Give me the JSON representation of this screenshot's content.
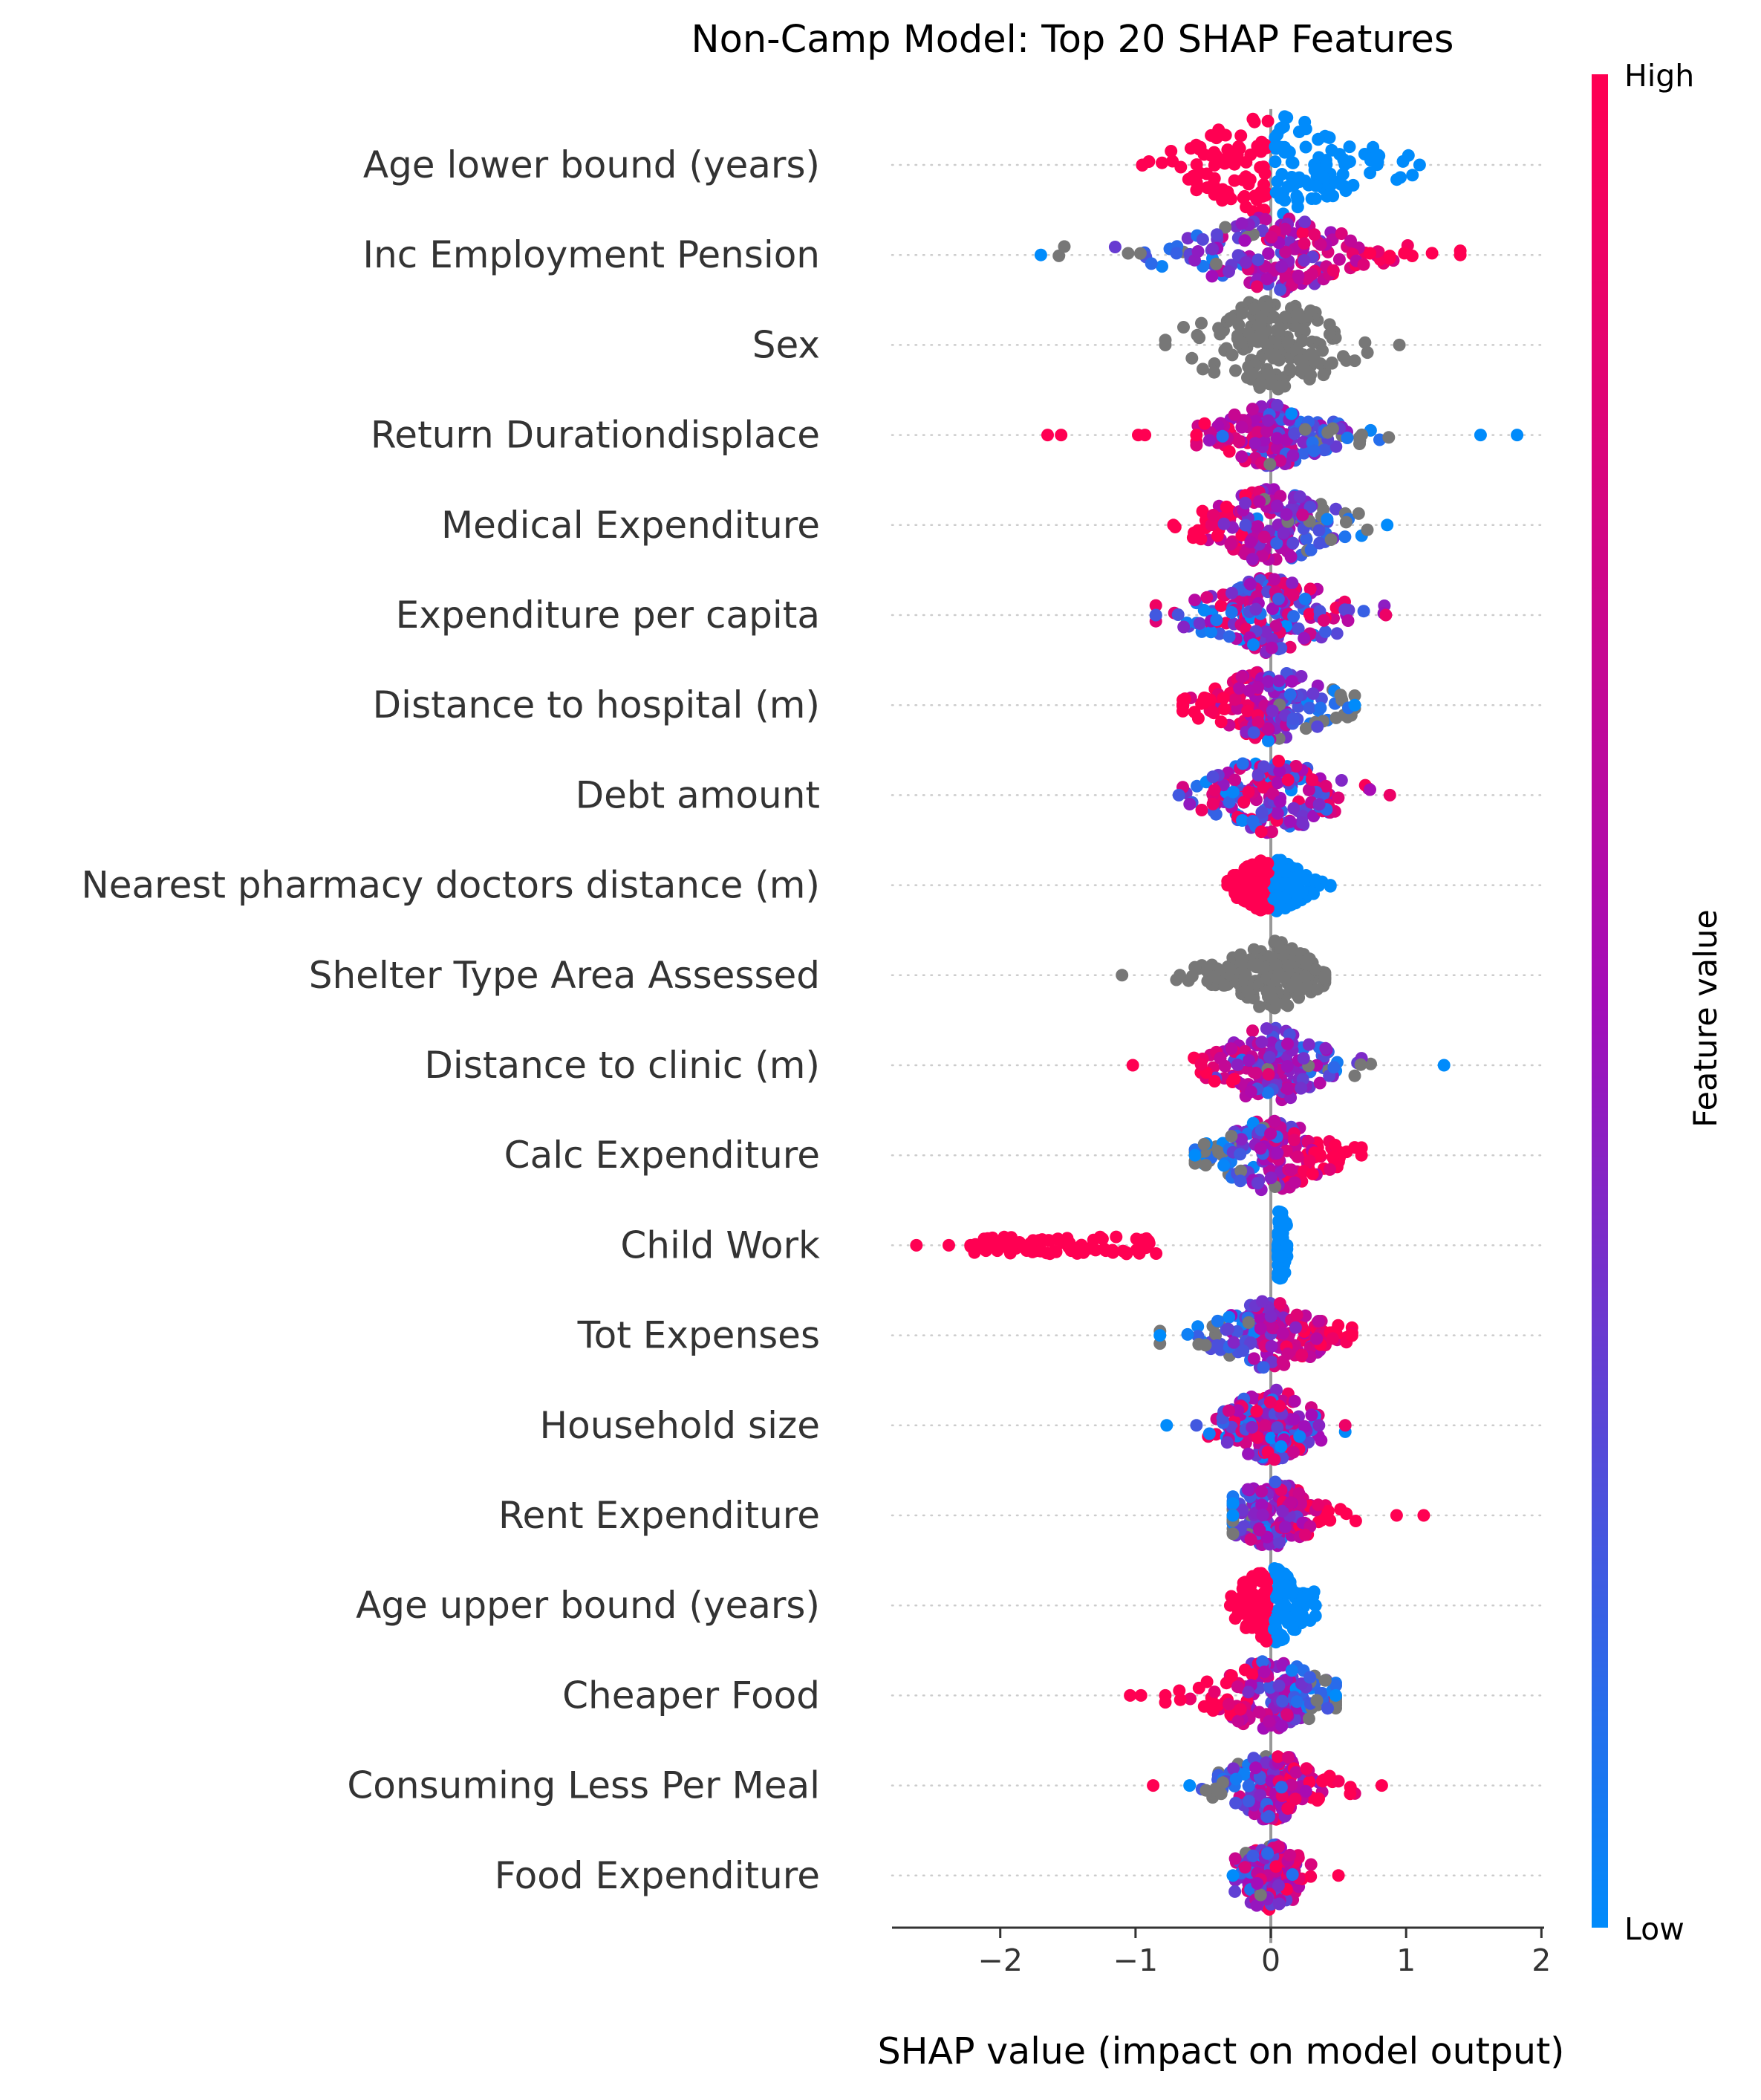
{
  "chart_data": {
    "type": "scatter",
    "subtype": "shap-beeswarm",
    "title": "Non-Camp Model: Top 20 SHAP Features",
    "xlabel": "SHAP value (impact on model output)",
    "xlim": [
      -2.8,
      2.02
    ],
    "x_ticks": [
      -2,
      -1,
      0,
      1,
      2
    ],
    "x_tick_labels": [
      "−2",
      "−1",
      "0",
      "1",
      "2"
    ],
    "zero_line": true,
    "colorbar": {
      "label": "Feature value",
      "high_label": "High",
      "low_label": "Low",
      "position": "right",
      "low_color": "#008bfb",
      "mid_color": "#a40cb8",
      "high_color": "#ff0052"
    },
    "colors": {
      "no_value": "#777777",
      "zero_line": "#999999",
      "text": "#333333",
      "row_guide": "#cccccc"
    },
    "features": [
      {
        "name": "Age lower bound (years)",
        "range": [
          -0.95,
          1.1
        ],
        "pattern": "split_high_left",
        "spread": 0.5,
        "width": 1.3,
        "categorical": true,
        "outliers": []
      },
      {
        "name": "Inc Employment Pension",
        "range": [
          -1.7,
          1.4
        ],
        "pattern": "low_left_high_right",
        "spread": 0.5,
        "width": 1.0,
        "categorical": false,
        "outliers": []
      },
      {
        "name": "Sex",
        "range": [
          -0.78,
          0.95
        ],
        "pattern": "gray",
        "spread": 0.45,
        "width": 1.2,
        "categorical": true,
        "outliers": []
      },
      {
        "name": "Return Durationdisplace",
        "range": [
          -0.55,
          1.55
        ],
        "pattern": "high_left_low_right",
        "spread": 0.35,
        "width": 0.8,
        "categorical": false,
        "outliers": [
          [
            -1.65,
            "high"
          ],
          [
            -1.55,
            "high"
          ],
          [
            -0.98,
            "high"
          ],
          [
            -0.93,
            "high"
          ],
          [
            1.82,
            "low"
          ]
        ]
      },
      {
        "name": "Medical Expenditure",
        "range": [
          -0.72,
          0.86
        ],
        "pattern": "high_left_low_right",
        "spread": 0.35,
        "width": 1.0,
        "categorical": false,
        "outliers": []
      },
      {
        "name": "Expenditure per capita",
        "range": [
          -0.85,
          0.85
        ],
        "pattern": "mixed",
        "spread": 0.4,
        "width": 1.0,
        "categorical": false,
        "outliers": []
      },
      {
        "name": "Distance to hospital (m)",
        "range": [
          -0.65,
          0.62
        ],
        "pattern": "high_left_low_right",
        "spread": 0.35,
        "width": 0.95,
        "categorical": false,
        "outliers": []
      },
      {
        "name": "Debt amount",
        "range": [
          -0.68,
          0.88
        ],
        "pattern": "mixed",
        "spread": 0.35,
        "width": 1.0,
        "categorical": false,
        "outliers": []
      },
      {
        "name": "Nearest pharmacy doctors distance (m)",
        "range": [
          -0.32,
          0.44
        ],
        "pattern": "split_high_left",
        "spread": 0.2,
        "width": 0.7,
        "categorical": false,
        "outliers": []
      },
      {
        "name": "Shelter Type Area Assessed",
        "range": [
          -1.1,
          0.4
        ],
        "pattern": "gray",
        "spread": 0.22,
        "width": 0.95,
        "categorical": false,
        "outliers": []
      },
      {
        "name": "Distance to clinic (m)",
        "range": [
          -1.02,
          1.28
        ],
        "pattern": "high_left_low_right",
        "spread": 0.3,
        "width": 1.0,
        "categorical": false,
        "outliers": []
      },
      {
        "name": "Calc Expenditure",
        "range": [
          -0.56,
          0.67
        ],
        "pattern": "low_left_high_right",
        "spread": 0.3,
        "width": 0.95,
        "categorical": false,
        "outliers": []
      },
      {
        "name": "Child Work",
        "range": [
          -2.22,
          0.12
        ],
        "pattern": "child_work",
        "spread": 0.3,
        "width": 0.9,
        "categorical": true,
        "outliers": [
          [
            -2.62,
            "high"
          ],
          [
            -2.38,
            "high"
          ]
        ]
      },
      {
        "name": "Tot Expenses",
        "range": [
          -0.82,
          0.6
        ],
        "pattern": "low_left_high_right",
        "spread": 0.3,
        "width": 0.9,
        "categorical": false,
        "outliers": []
      },
      {
        "name": "Household size",
        "range": [
          -0.55,
          0.55
        ],
        "pattern": "mixed",
        "spread": 0.25,
        "width": 0.95,
        "categorical": false,
        "outliers": [
          [
            -0.77,
            "low"
          ]
        ]
      },
      {
        "name": "Rent Expenditure",
        "range": [
          -0.28,
          0.93
        ],
        "pattern": "low_left_high_right",
        "spread": 0.25,
        "width": 0.9,
        "categorical": false,
        "outliers": [
          [
            1.13,
            "high"
          ]
        ]
      },
      {
        "name": "Age upper bound (years)",
        "range": [
          -0.3,
          0.33
        ],
        "pattern": "split_high_left",
        "spread": 0.18,
        "width": 1.0,
        "categorical": true,
        "outliers": []
      },
      {
        "name": "Cheaper Food",
        "range": [
          -0.78,
          0.48
        ],
        "pattern": "high_left_low_right",
        "spread": 0.3,
        "width": 0.95,
        "categorical": false,
        "outliers": [
          [
            -1.04,
            "high"
          ],
          [
            -0.96,
            "high"
          ]
        ]
      },
      {
        "name": "Consuming Less Per Meal",
        "range": [
          -0.6,
          0.82
        ],
        "pattern": "low_left_high_right",
        "spread": 0.25,
        "width": 0.9,
        "categorical": false,
        "outliers": [
          [
            -0.87,
            "high"
          ]
        ]
      },
      {
        "name": "Food Expenditure",
        "range": [
          -0.28,
          0.5
        ],
        "pattern": "mixed_high_right",
        "spread": 0.2,
        "width": 0.9,
        "categorical": false,
        "outliers": []
      }
    ]
  }
}
